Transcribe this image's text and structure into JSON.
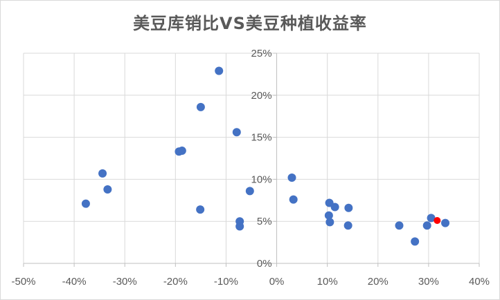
{
  "chart_data": {
    "type": "scatter",
    "title": "美豆库销比VS美豆种植收益率",
    "xlabel": "",
    "ylabel": "",
    "xlim": [
      -0.5,
      0.4
    ],
    "ylim": [
      0,
      0.25
    ],
    "x_ticks": [
      "-50%",
      "-40%",
      "-30%",
      "-20%",
      "-10%",
      "0%",
      "10%",
      "20%",
      "30%",
      "40%"
    ],
    "y_ticks": [
      "0%",
      "5%",
      "10%",
      "15%",
      "20%",
      "25%"
    ],
    "grid": true,
    "legend": "none",
    "colors": {
      "points": "#4472C4",
      "highlight": "#FF0000",
      "grid": "#d9d9d9",
      "axis": "#bfbfbf"
    },
    "points": [
      {
        "x": -0.377,
        "y": 0.071
      },
      {
        "x": -0.344,
        "y": 0.107
      },
      {
        "x": -0.334,
        "y": 0.088
      },
      {
        "x": -0.193,
        "y": 0.133
      },
      {
        "x": -0.187,
        "y": 0.134
      },
      {
        "x": -0.15,
        "y": 0.186
      },
      {
        "x": -0.151,
        "y": 0.064
      },
      {
        "x": -0.114,
        "y": 0.229
      },
      {
        "x": -0.079,
        "y": 0.156
      },
      {
        "x": -0.073,
        "y": 0.05
      },
      {
        "x": -0.073,
        "y": 0.044
      },
      {
        "x": -0.053,
        "y": 0.086
      },
      {
        "x": 0.03,
        "y": 0.102
      },
      {
        "x": 0.033,
        "y": 0.076
      },
      {
        "x": 0.104,
        "y": 0.072
      },
      {
        "x": 0.115,
        "y": 0.067
      },
      {
        "x": 0.142,
        "y": 0.066
      },
      {
        "x": 0.103,
        "y": 0.057
      },
      {
        "x": 0.105,
        "y": 0.049
      },
      {
        "x": 0.141,
        "y": 0.045
      },
      {
        "x": 0.242,
        "y": 0.045
      },
      {
        "x": 0.273,
        "y": 0.026
      },
      {
        "x": 0.297,
        "y": 0.045
      },
      {
        "x": 0.305,
        "y": 0.054
      },
      {
        "x": 0.333,
        "y": 0.048
      }
    ],
    "highlight": [
      {
        "x": 0.317,
        "y": 0.051
      }
    ]
  }
}
